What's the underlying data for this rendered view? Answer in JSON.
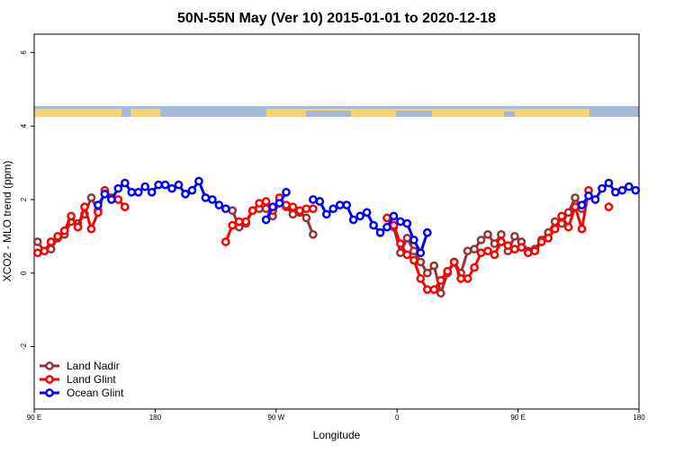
{
  "chart_data": {
    "type": "line",
    "title": "50N-55N May (Ver 10)   2015-01-01 to 2020-12-18",
    "x_label": "Longitude",
    "y_label": "XCO2 - MLO trend (ppm)",
    "xlim": [
      -270,
      180
    ],
    "ylim": [
      -3.7,
      6.5
    ],
    "xticks": [
      {
        "value": -270,
        "label": "90 E"
      },
      {
        "value": -180,
        "label": "180"
      },
      {
        "value": -90,
        "label": "90 W"
      },
      0,
      {
        "value": 90,
        "label": "90 E"
      },
      180
    ],
    "yticks": [
      -2,
      0,
      2,
      4,
      6
    ],
    "grid": false,
    "legend": "bottom-left",
    "series": [
      {
        "name": "Land Nadir",
        "color": "#993333",
        "x": [
          -267.5,
          -262.5,
          -257.5,
          -252.5,
          -247.5,
          -242.5,
          -237.5,
          -232.5,
          -227.5,
          -222.5,
          -217.5,
          -122.5,
          -117.5,
          -112.5,
          -107.5,
          -102.5,
          -97.5,
          -92.5,
          -87.5,
          -82.5,
          -77.5,
          -72.5,
          -67.5,
          -62.5,
          -57.5,
          -2.5,
          2.5,
          7.5,
          12.5,
          17.5,
          22.5,
          27.5,
          32.5,
          37.5,
          42.5,
          47.5,
          52.5,
          57.5,
          62.5,
          67.5,
          72.5,
          77.5,
          82.5,
          87.5,
          92.5,
          97.5,
          102.5,
          107.5,
          112.5,
          117.5,
          122.5,
          127.5,
          132.5,
          137.5
        ],
        "values": [
          0.85,
          0.6,
          0.65,
          0.95,
          1.05,
          1.4,
          1.35,
          1.6,
          2.05,
          1.7,
          null,
          1.7,
          1.25,
          1.35,
          1.7,
          1.75,
          1.75,
          1.55,
          1.95,
          1.8,
          1.6,
          1.65,
          1.5,
          1.05,
          null,
          1.25,
          0.55,
          0.95,
          0.6,
          0.3,
          0.0,
          0.2,
          -0.55,
          0.0,
          0.3,
          0.0,
          0.6,
          0.65,
          0.9,
          1.05,
          0.8,
          1.05,
          0.6,
          1.0,
          0.85,
          0.6,
          0.65,
          0.9,
          1.1,
          1.4,
          1.35,
          1.65,
          2.05,
          1.75
        ]
      },
      {
        "name": "Land Glint",
        "color": "#ff0000",
        "x": [
          -267.5,
          -262.5,
          -257.5,
          -252.5,
          -247.5,
          -242.5,
          -237.5,
          -232.5,
          -227.5,
          -222.5,
          -217.5,
          -212.5,
          -207.5,
          -202.5,
          -197.5,
          -127.5,
          -122.5,
          -117.5,
          -112.5,
          -107.5,
          -102.5,
          -97.5,
          -92.5,
          -87.5,
          -82.5,
          -77.5,
          -72.5,
          -67.5,
          -62.5,
          -57.5,
          -7.5,
          -2.5,
          2.5,
          7.5,
          12.5,
          17.5,
          22.5,
          27.5,
          32.5,
          37.5,
          42.5,
          47.5,
          52.5,
          57.5,
          62.5,
          67.5,
          72.5,
          77.5,
          82.5,
          87.5,
          92.5,
          97.5,
          102.5,
          107.5,
          112.5,
          117.5,
          122.5,
          127.5,
          132.5,
          137.5,
          142.5,
          147.5,
          157.5
        ],
        "values": [
          0.55,
          0.6,
          0.85,
          1.0,
          1.15,
          1.55,
          1.25,
          1.8,
          1.2,
          1.65,
          2.25,
          2.05,
          2.0,
          1.8,
          null,
          0.85,
          1.3,
          1.4,
          1.4,
          1.7,
          1.9,
          1.95,
          1.7,
          2.05,
          1.85,
          1.8,
          1.7,
          1.75,
          1.75,
          null,
          1.5,
          1.3,
          0.8,
          0.5,
          0.35,
          -0.15,
          -0.45,
          -0.45,
          -0.2,
          0.05,
          0.3,
          -0.15,
          -0.15,
          0.15,
          0.55,
          0.6,
          0.5,
          0.85,
          0.75,
          0.65,
          0.7,
          0.55,
          0.6,
          0.85,
          0.95,
          1.2,
          1.55,
          1.25,
          1.8,
          1.2,
          2.25,
          null,
          1.8
        ]
      },
      {
        "name": "Ocean Glint",
        "color": "#0000ff",
        "x": [
          -222.5,
          -217.5,
          -212.5,
          -207.5,
          -202.5,
          -197.5,
          -192.5,
          -187.5,
          -182.5,
          -177.5,
          -172.5,
          -167.5,
          -162.5,
          -157.5,
          -152.5,
          -147.5,
          -142.5,
          -137.5,
          -132.5,
          -127.5,
          -122.5,
          -97.5,
          -92.5,
          -87.5,
          -82.5,
          -77.5,
          -62.5,
          -57.5,
          -52.5,
          -47.5,
          -42.5,
          -37.5,
          -32.5,
          -27.5,
          -22.5,
          -17.5,
          -12.5,
          -7.5,
          -2.5,
          2.5,
          7.5,
          12.5,
          17.5,
          22.5,
          27.5,
          137.5,
          142.5,
          147.5,
          152.5,
          157.5,
          162.5,
          167.5,
          172.5,
          177.5
        ],
        "values": [
          1.85,
          2.15,
          2.0,
          2.3,
          2.45,
          2.2,
          2.2,
          2.35,
          2.2,
          2.4,
          2.4,
          2.3,
          2.4,
          2.15,
          2.25,
          2.5,
          2.05,
          2.0,
          1.85,
          1.75,
          null,
          1.45,
          1.8,
          1.9,
          2.2,
          null,
          2.0,
          1.95,
          1.6,
          1.75,
          1.85,
          1.85,
          1.45,
          1.55,
          1.65,
          1.3,
          1.1,
          1.25,
          1.55,
          1.4,
          1.35,
          0.9,
          0.55,
          1.1,
          null,
          1.85,
          2.1,
          2.0,
          2.3,
          2.45,
          2.2,
          2.25,
          2.35,
          2.25
        ]
      }
    ]
  }
}
